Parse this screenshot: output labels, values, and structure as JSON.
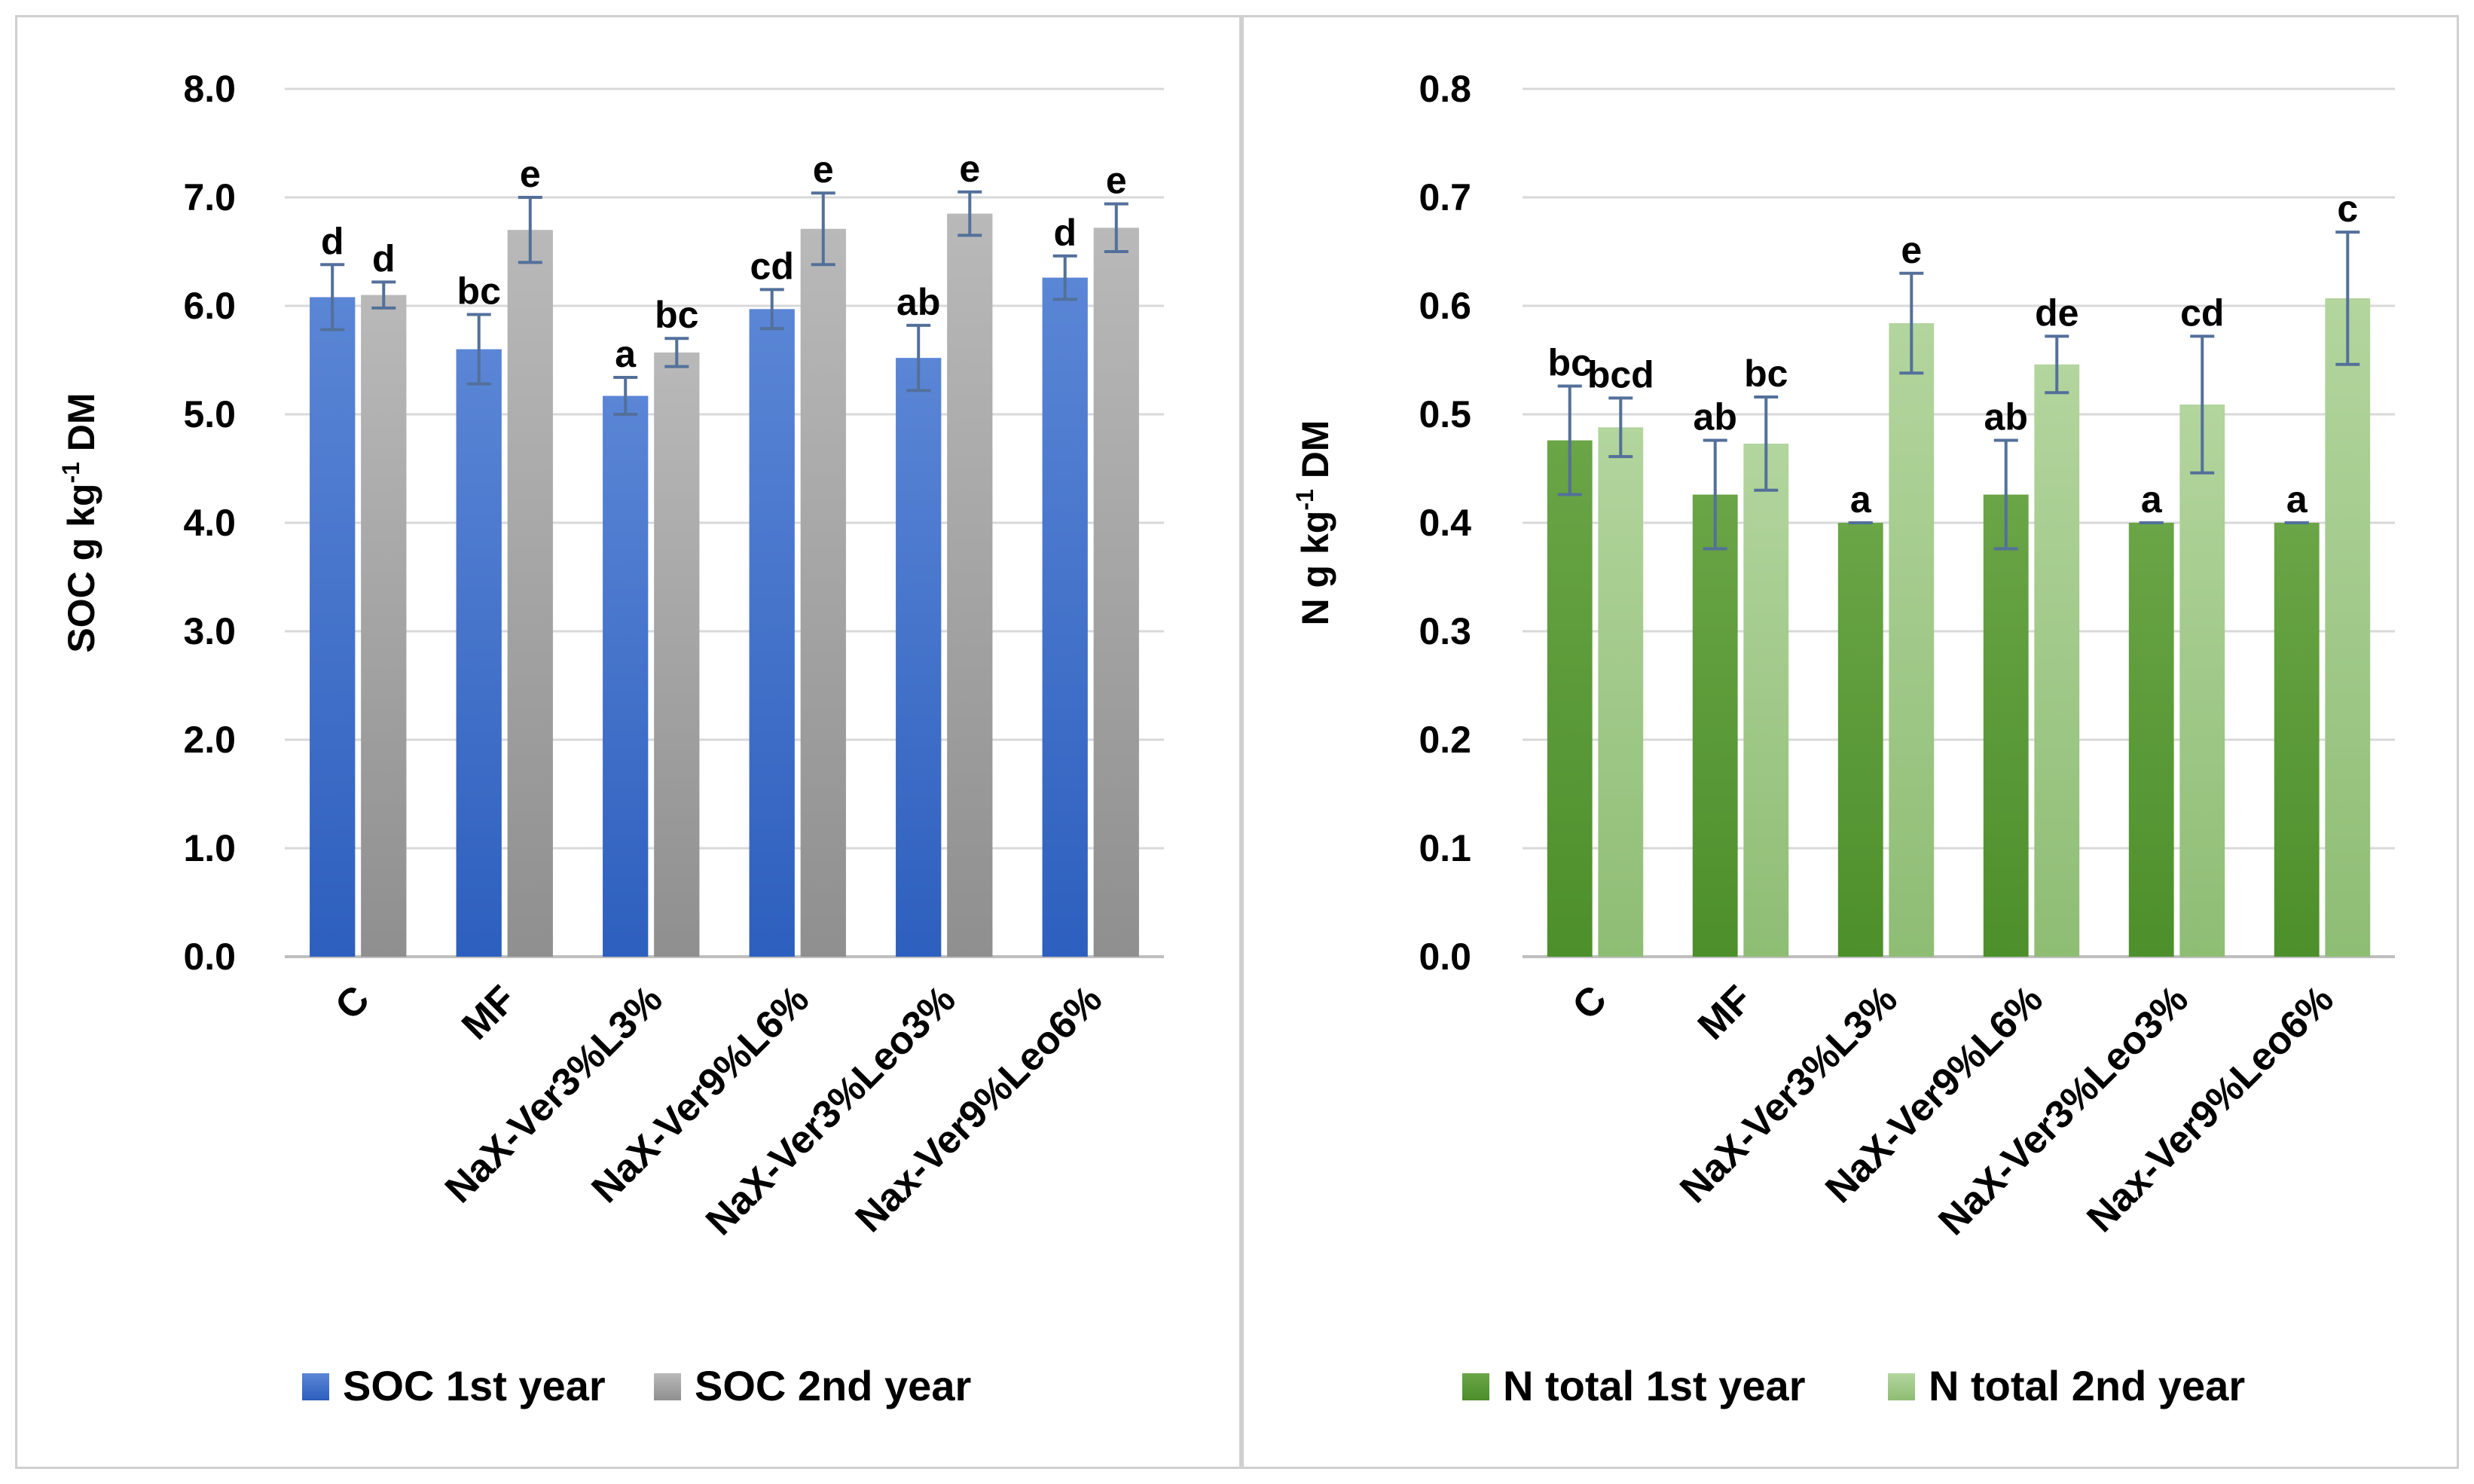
{
  "chart_data": [
    {
      "type": "bar",
      "ylabel": "SOC g kg⁻¹ DM",
      "ylabel_main": "SOC g kg",
      "ylabel_sup": "-1",
      "ylabel_tail": " DM",
      "ylim": [
        0,
        8
      ],
      "yticks": [
        "0.0",
        "1.0",
        "2.0",
        "3.0",
        "4.0",
        "5.0",
        "6.0",
        "7.0",
        "8.0"
      ],
      "grid": true,
      "legend": "bottom",
      "categories": [
        "C",
        "MF",
        "NaX-Ver3%L3%",
        "NaX-Ver9%L6%",
        "NaX-Ver3%Leo3%",
        "Nax-Ver9%Leo6%"
      ],
      "series": [
        {
          "name": "SOC 1st year",
          "color_top": "#5b86d6",
          "color_bottom": "#2d5fbe",
          "values": [
            6.08,
            5.6,
            5.17,
            5.97,
            5.52,
            6.26
          ],
          "errors": [
            0.3,
            0.32,
            0.17,
            0.18,
            0.3,
            0.2
          ],
          "letters": [
            "d",
            "bc",
            "a",
            "cd",
            "ab",
            "d"
          ]
        },
        {
          "name": "SOC 2nd year",
          "color_top": "#b9b9b9",
          "color_bottom": "#8f8f8f",
          "values": [
            6.1,
            6.7,
            5.57,
            6.71,
            6.85,
            6.72
          ],
          "errors": [
            0.12,
            0.3,
            0.13,
            0.33,
            0.2,
            0.22
          ],
          "letters": [
            "d",
            "e",
            "bc",
            "e",
            "e",
            "e"
          ]
        }
      ]
    },
    {
      "type": "bar",
      "ylabel": "N g kg⁻¹ DM",
      "ylabel_main": "N g kg",
      "ylabel_sup": "-1",
      "ylabel_tail": " DM",
      "ylim": [
        0,
        0.8
      ],
      "yticks": [
        "0.0",
        "0.1",
        "0.2",
        "0.3",
        "0.4",
        "0.5",
        "0.6",
        "0.7",
        "0.8"
      ],
      "grid": true,
      "legend": "bottom",
      "categories": [
        "C",
        "MF",
        "NaX-Ver3%L3%",
        "NaX-Ver9%L6%",
        "NaX-Ver3%Leo3%",
        "Nax-Ver9%Leo6%"
      ],
      "series": [
        {
          "name": "N total 1st year",
          "color_top": "#6aa546",
          "color_bottom": "#4d8f2b",
          "values": [
            0.476,
            0.426,
            0.4,
            0.426,
            0.4,
            0.4
          ],
          "errors": [
            0.05,
            0.05,
            0.0,
            0.05,
            0.0,
            0.0
          ],
          "letters": [
            "bc",
            "ab",
            "a",
            "ab",
            "a",
            "a"
          ]
        },
        {
          "name": "N total 2nd year",
          "color_top": "#b3d59e",
          "color_bottom": "#8ebd74",
          "values": [
            0.488,
            0.473,
            0.584,
            0.546,
            0.509,
            0.607
          ],
          "errors": [
            0.027,
            0.043,
            0.046,
            0.026,
            0.063,
            0.061
          ],
          "letters": [
            "bcd",
            "bc",
            "e",
            "de",
            "cd",
            "c"
          ]
        }
      ]
    }
  ]
}
